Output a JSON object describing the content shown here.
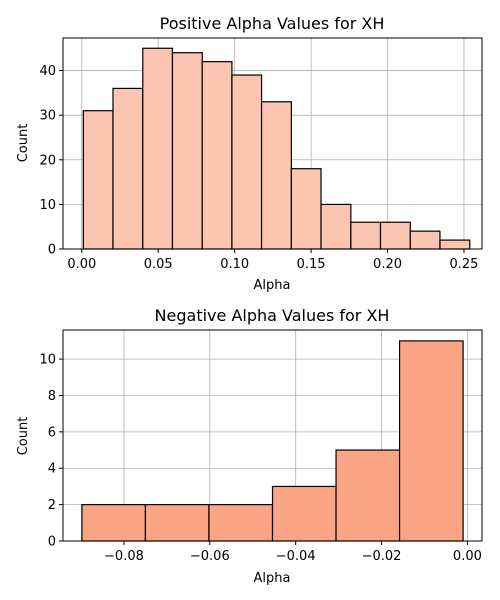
{
  "chart_data": [
    {
      "type": "bar",
      "title": "Positive Alpha Values for XH",
      "xlabel": "Alpha",
      "ylabel": "Count",
      "bin_edges": [
        0.001,
        0.0204,
        0.0399,
        0.0593,
        0.0788,
        0.0982,
        0.1176,
        0.1371,
        0.1565,
        0.176,
        0.1954,
        0.2149,
        0.2343,
        0.2538
      ],
      "values": [
        31,
        36,
        45,
        44,
        42,
        39,
        33,
        18,
        10,
        6,
        6,
        4,
        2
      ],
      "xlim": [
        -0.0123,
        0.2618
      ],
      "ylim": [
        0,
        47.3
      ],
      "xticks": [
        "0.00",
        "0.05",
        "0.10",
        "0.15",
        "0.20",
        "0.25"
      ],
      "yticks": [
        "0",
        "10",
        "20",
        "30",
        "40"
      ],
      "bar_color": "#fcc5b2",
      "edge_color": "#000000",
      "grid": true
    },
    {
      "type": "bar",
      "title": "Negative Alpha Values for XH",
      "xlabel": "Alpha",
      "ylabel": "Count",
      "bin_edges": [
        -0.0898,
        -0.075,
        -0.0602,
        -0.0454,
        -0.0306,
        -0.0158,
        -0.001
      ],
      "values": [
        2,
        2,
        2,
        3,
        5,
        11
      ],
      "xlim": [
        -0.0942,
        0.0034
      ],
      "ylim": [
        0,
        11.6
      ],
      "xticks": [
        "−0.08",
        "−0.06",
        "−0.04",
        "−0.02",
        "0.00"
      ],
      "yticks": [
        "0",
        "2",
        "4",
        "6",
        "8",
        "10"
      ],
      "bar_color": "#fca585",
      "edge_color": "#000000",
      "grid": true
    }
  ]
}
